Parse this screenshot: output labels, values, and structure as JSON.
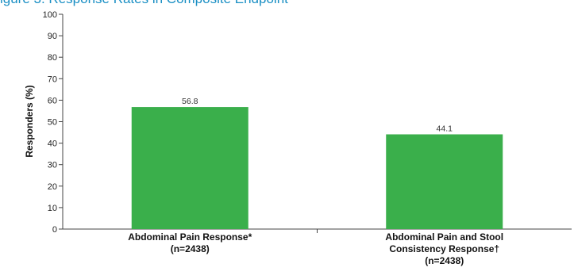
{
  "header": {
    "title": "igure 3. Response Rates in Composite Endpoint"
  },
  "chart_data": {
    "type": "bar",
    "title": "",
    "ylabel": "Responders (%)",
    "xlabel": "",
    "ylim": [
      0,
      100
    ],
    "yticks": [
      0,
      10,
      20,
      30,
      40,
      50,
      60,
      70,
      80,
      90,
      100
    ],
    "grid": false,
    "bar_color": "#3aaf4b",
    "categories": [
      [
        "Abdominal Pain Response*",
        "(n=2438)"
      ],
      [
        "Abdominal Pain and Stool",
        "Consistency Response†",
        "(n=2438)"
      ]
    ],
    "values": [
      56.8,
      44.1
    ],
    "value_labels": [
      "56.8",
      "44.1"
    ]
  }
}
